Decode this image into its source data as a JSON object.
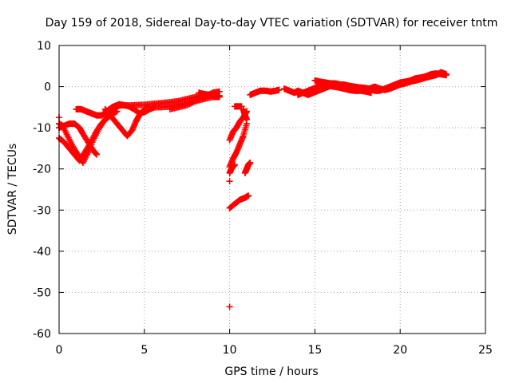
{
  "chart_data": {
    "type": "scatter",
    "title": "Day 159 of 2018, Sidereal Day-to-day VTEC variation (SDTVAR) for receiver tntm",
    "xlabel": "GPS time / hours",
    "ylabel": "SDTVAR / TECUs",
    "xlim": [
      0,
      25
    ],
    "ylim": [
      -60,
      10
    ],
    "x_ticks": [
      0,
      5,
      10,
      15,
      20,
      25
    ],
    "y_ticks": [
      10,
      0,
      -10,
      -20,
      -30,
      -40,
      -50,
      -60
    ],
    "x_tick_labels": [
      "0",
      "5",
      "10",
      "15",
      "20",
      "25"
    ],
    "y_tick_labels": [
      "10",
      "0",
      "-10",
      "-20",
      "-30",
      "-40",
      "-50",
      "-60"
    ],
    "grid": true,
    "marker": "+",
    "color": "#ff0000",
    "series": [
      {
        "name": "SDTVAR tracks",
        "tracks": [
          [
            [
              0.0,
              -12.5
            ],
            [
              0.3,
              -13.5
            ],
            [
              0.6,
              -15.0
            ],
            [
              0.9,
              -16.5
            ],
            [
              1.2,
              -18.0
            ],
            [
              1.5,
              -16.0
            ],
            [
              1.8,
              -14.0
            ],
            [
              2.1,
              -11.5
            ],
            [
              2.4,
              -9.5
            ],
            [
              2.7,
              -8.0
            ],
            [
              3.0,
              -6.5
            ],
            [
              3.3,
              -5.0
            ],
            [
              3.6,
              -4.5
            ],
            [
              4.0,
              -4.6
            ]
          ],
          [
            [
              0.0,
              -9.0
            ],
            [
              0.2,
              -9.5
            ],
            [
              0.5,
              -12.0
            ],
            [
              0.8,
              -14.5
            ],
            [
              1.1,
              -16.5
            ],
            [
              1.4,
              -18.5
            ],
            [
              1.7,
              -16.0
            ],
            [
              2.0,
              -13.0
            ],
            [
              2.3,
              -10.5
            ],
            [
              2.6,
              -8.5
            ],
            [
              3.0,
              -7.0
            ],
            [
              3.4,
              -6.0
            ]
          ],
          [
            [
              0.0,
              -10.0
            ],
            [
              0.3,
              -9.5
            ],
            [
              0.6,
              -9.0
            ],
            [
              0.9,
              -9.0
            ],
            [
              1.2,
              -10.0
            ],
            [
              1.4,
              -11.5
            ],
            [
              1.7,
              -13.5
            ],
            [
              2.0,
              -15.5
            ],
            [
              2.2,
              -16.5
            ]
          ],
          [
            [
              1.0,
              -5.5
            ],
            [
              1.3,
              -5.5
            ],
            [
              1.6,
              -6.0
            ],
            [
              1.9,
              -6.5
            ],
            [
              2.2,
              -7.0
            ],
            [
              2.5,
              -7.0
            ],
            [
              2.8,
              -6.0
            ],
            [
              3.1,
              -5.0
            ],
            [
              3.4,
              -4.5
            ],
            [
              3.7,
              -4.5
            ]
          ],
          [
            [
              2.7,
              -5.5
            ],
            [
              2.9,
              -6.5
            ],
            [
              3.1,
              -7.5
            ],
            [
              3.4,
              -9.0
            ],
            [
              3.7,
              -10.5
            ],
            [
              4.0,
              -12.0
            ],
            [
              4.3,
              -10.5
            ],
            [
              4.5,
              -8.5
            ],
            [
              4.7,
              -7.0
            ],
            [
              5.0,
              -5.5
            ],
            [
              5.3,
              -4.8
            ]
          ],
          [
            [
              3.5,
              -4.3
            ],
            [
              3.8,
              -4.5
            ],
            [
              4.1,
              -4.8
            ],
            [
              4.4,
              -5.5
            ],
            [
              4.7,
              -6.5
            ],
            [
              5.0,
              -6.2
            ],
            [
              5.3,
              -5.5
            ],
            [
              5.6,
              -5.0
            ]
          ],
          [
            [
              4.0,
              -4.6
            ],
            [
              4.5,
              -4.5
            ],
            [
              5.0,
              -4.4
            ],
            [
              5.5,
              -4.2
            ],
            [
              6.0,
              -4.0
            ],
            [
              6.5,
              -3.8
            ],
            [
              7.0,
              -3.5
            ],
            [
              7.5,
              -3.0
            ],
            [
              8.0,
              -2.5
            ],
            [
              8.5,
              -2.0
            ],
            [
              9.0,
              -2.0
            ],
            [
              9.4,
              -2.2
            ]
          ],
          [
            [
              5.5,
              -5.0
            ],
            [
              6.0,
              -5.0
            ],
            [
              6.5,
              -4.8
            ],
            [
              7.0,
              -4.5
            ],
            [
              7.5,
              -4.0
            ],
            [
              8.0,
              -3.5
            ],
            [
              8.5,
              -3.0
            ],
            [
              9.0,
              -2.5
            ],
            [
              9.4,
              -2.5
            ]
          ],
          [
            [
              6.5,
              -5.5
            ],
            [
              7.0,
              -5.0
            ],
            [
              7.5,
              -4.5
            ],
            [
              8.0,
              -3.5
            ],
            [
              8.5,
              -2.5
            ],
            [
              9.0,
              -1.5
            ],
            [
              9.4,
              -1.2
            ]
          ],
          [
            [
              8.2,
              -1.5
            ],
            [
              8.5,
              -1.8
            ],
            [
              8.8,
              -2.0
            ],
            [
              9.1,
              -2.2
            ],
            [
              9.4,
              -2.5
            ]
          ],
          [
            [
              10.0,
              -13.0
            ],
            [
              10.2,
              -11.0
            ],
            [
              10.4,
              -10.0
            ],
            [
              10.6,
              -8.5
            ],
            [
              10.8,
              -7.5
            ],
            [
              11.0,
              -6.0
            ]
          ],
          [
            [
              10.0,
              -19.5
            ],
            [
              10.2,
              -17.5
            ],
            [
              10.4,
              -16.0
            ],
            [
              10.6,
              -14.0
            ],
            [
              10.8,
              -12.0
            ],
            [
              11.0,
              -9.0
            ]
          ],
          [
            [
              10.0,
              -21.0
            ],
            [
              10.1,
              -20.0
            ],
            [
              10.3,
              -19.0
            ]
          ],
          [
            [
              10.0,
              -29.5
            ],
            [
              10.3,
              -28.5
            ],
            [
              10.6,
              -27.5
            ],
            [
              10.9,
              -27.0
            ],
            [
              11.1,
              -26.5
            ]
          ],
          [
            [
              10.9,
              -21.0
            ],
            [
              11.0,
              -20.0
            ],
            [
              11.1,
              -19.0
            ],
            [
              11.2,
              -18.5
            ]
          ],
          [
            [
              10.3,
              -4.8
            ],
            [
              10.5,
              -4.8
            ],
            [
              10.7,
              -4.8
            ]
          ],
          [
            [
              10.8,
              -5.5
            ],
            [
              10.9,
              -7.0
            ],
            [
              11.0,
              -8.0
            ]
          ],
          [
            [
              10.0,
              -23.0
            ]
          ],
          [
            [
              0.0,
              -7.5
            ]
          ],
          [
            [
              10.0,
              -53.5
            ]
          ],
          [
            [
              11.2,
              -2.0
            ],
            [
              11.5,
              -1.5
            ],
            [
              11.8,
              -1.0
            ],
            [
              12.1,
              -1.0
            ],
            [
              12.4,
              -1.2
            ],
            [
              12.7,
              -1.0
            ],
            [
              12.9,
              -0.8
            ]
          ],
          [
            [
              13.2,
              -0.5
            ],
            [
              13.5,
              -1.0
            ],
            [
              13.8,
              -1.5
            ],
            [
              14.0,
              -1.0
            ],
            [
              14.3,
              -1.5
            ],
            [
              14.6,
              -2.0
            ],
            [
              14.9,
              -1.5
            ],
            [
              15.2,
              -1.0
            ],
            [
              15.5,
              -0.5
            ],
            [
              15.8,
              0.0
            ],
            [
              16.1,
              0.5
            ],
            [
              16.4,
              0.5
            ],
            [
              16.7,
              0.5
            ],
            [
              17.0,
              0.2
            ],
            [
              17.3,
              0.0
            ],
            [
              17.6,
              -0.2
            ],
            [
              17.9,
              -0.3
            ],
            [
              18.2,
              -0.5
            ],
            [
              18.5,
              -1.0
            ],
            [
              18.8,
              -1.0
            ],
            [
              19.1,
              -0.5
            ],
            [
              19.4,
              0.0
            ],
            [
              19.7,
              0.5
            ],
            [
              20.0,
              1.0
            ],
            [
              20.3,
              1.2
            ],
            [
              20.6,
              1.5
            ],
            [
              20.9,
              2.0
            ],
            [
              21.2,
              2.2
            ],
            [
              21.5,
              2.5
            ],
            [
              21.8,
              3.0
            ],
            [
              22.1,
              3.2
            ],
            [
              22.4,
              3.0
            ],
            [
              22.7,
              2.8
            ]
          ],
          [
            [
              14.0,
              -2.0
            ],
            [
              14.3,
              -1.5
            ],
            [
              14.6,
              -1.0
            ],
            [
              14.9,
              -0.5
            ],
            [
              15.2,
              0.0
            ],
            [
              15.5,
              0.3
            ],
            [
              15.8,
              0.2
            ],
            [
              16.1,
              0.0
            ],
            [
              16.4,
              -0.2
            ],
            [
              16.7,
              -0.5
            ],
            [
              17.0,
              -0.8
            ],
            [
              17.3,
              -1.0
            ],
            [
              17.6,
              -1.0
            ],
            [
              17.9,
              -0.8
            ],
            [
              18.2,
              -0.5
            ],
            [
              18.5,
              0.0
            ],
            [
              18.8,
              -0.5
            ],
            [
              19.1,
              -0.8
            ],
            [
              19.4,
              -0.5
            ],
            [
              19.7,
              0.0
            ],
            [
              20.0,
              0.5
            ],
            [
              20.3,
              0.8
            ],
            [
              20.6,
              1.2
            ],
            [
              20.9,
              1.5
            ],
            [
              21.2,
              1.8
            ],
            [
              21.5,
              2.2
            ],
            [
              21.8,
              2.5
            ],
            [
              22.1,
              2.8
            ],
            [
              22.4,
              3.5
            ],
            [
              22.7,
              3.0
            ]
          ],
          [
            [
              15.0,
              1.5
            ],
            [
              15.3,
              1.2
            ],
            [
              15.6,
              1.0
            ],
            [
              15.9,
              0.8
            ],
            [
              16.2,
              0.8
            ],
            [
              16.5,
              0.5
            ],
            [
              16.8,
              0.0
            ],
            [
              17.1,
              -0.5
            ],
            [
              17.4,
              -0.8
            ],
            [
              17.7,
              -1.0
            ],
            [
              18.0,
              -1.2
            ],
            [
              18.3,
              -1.5
            ]
          ]
        ]
      }
    ]
  }
}
